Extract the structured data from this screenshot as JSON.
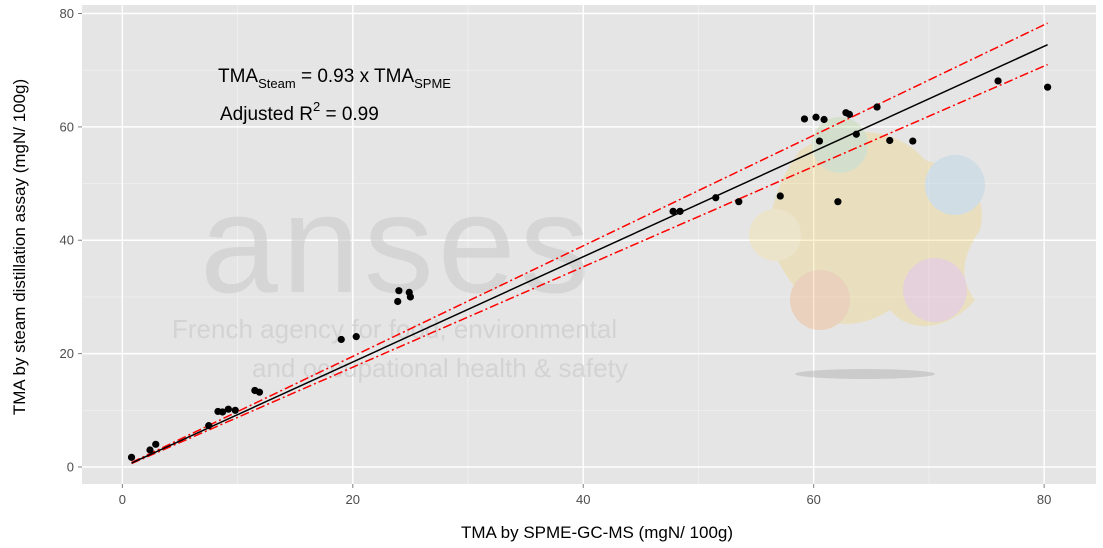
{
  "chart_data": {
    "type": "scatter",
    "xlabel": "TMA by SPME-GC-MS (mgN/ 100g)",
    "ylabel": "TMA by steam distillation assay (mgN/ 100g)",
    "xlim": [
      -3.5,
      84.5
    ],
    "ylim": [
      -3.0,
      81.5
    ],
    "xticks": [
      0,
      20,
      40,
      60,
      80
    ],
    "yticks": [
      0,
      20,
      40,
      60,
      80
    ],
    "grid": true,
    "annotation": {
      "line1_main": "TMA",
      "line1_sub1": "Steam",
      "line1_mid": " = 0.93 x TMA",
      "line1_sub2": "SPME",
      "line2_main": "Adjusted R",
      "line2_sup": "2",
      "line2_rest": " = 0.99"
    },
    "fit_line": {
      "x": [
        0.8,
        80.3
      ],
      "y": [
        0.7,
        74.5
      ]
    },
    "upper_band": {
      "x": [
        0.8,
        80.3
      ],
      "y": [
        0.8,
        78.3
      ]
    },
    "lower_band": {
      "x": [
        0.8,
        80.3
      ],
      "y": [
        0.6,
        71.0
      ]
    },
    "points": [
      {
        "x": 0.8,
        "y": 1.7
      },
      {
        "x": 2.4,
        "y": 3.0
      },
      {
        "x": 2.9,
        "y": 4.0
      },
      {
        "x": 7.5,
        "y": 7.3
      },
      {
        "x": 8.3,
        "y": 9.8
      },
      {
        "x": 8.7,
        "y": 9.7
      },
      {
        "x": 9.2,
        "y": 10.2
      },
      {
        "x": 9.8,
        "y": 10.0
      },
      {
        "x": 11.5,
        "y": 13.5
      },
      {
        "x": 11.9,
        "y": 13.2
      },
      {
        "x": 19.0,
        "y": 22.5
      },
      {
        "x": 20.3,
        "y": 23.0
      },
      {
        "x": 23.9,
        "y": 29.2
      },
      {
        "x": 24.0,
        "y": 31.1
      },
      {
        "x": 24.9,
        "y": 30.8
      },
      {
        "x": 25.0,
        "y": 30.0
      },
      {
        "x": 47.8,
        "y": 45.1
      },
      {
        "x": 48.4,
        "y": 45.1
      },
      {
        "x": 51.5,
        "y": 47.5
      },
      {
        "x": 53.5,
        "y": 46.8
      },
      {
        "x": 57.1,
        "y": 47.8
      },
      {
        "x": 59.2,
        "y": 61.4
      },
      {
        "x": 60.2,
        "y": 61.7
      },
      {
        "x": 60.5,
        "y": 57.5
      },
      {
        "x": 60.9,
        "y": 61.3
      },
      {
        "x": 62.1,
        "y": 46.8
      },
      {
        "x": 62.8,
        "y": 62.5
      },
      {
        "x": 63.1,
        "y": 62.2
      },
      {
        "x": 63.7,
        "y": 58.7
      },
      {
        "x": 65.5,
        "y": 63.5
      },
      {
        "x": 66.6,
        "y": 57.6
      },
      {
        "x": 68.6,
        "y": 57.5
      },
      {
        "x": 76.0,
        "y": 68.1
      },
      {
        "x": 80.3,
        "y": 67.0
      }
    ],
    "colors": {
      "panel": "#e5e5e5",
      "grid": "#ffffff",
      "fit": "#000000",
      "band": "#ff0000",
      "points": "#000000"
    }
  },
  "watermark": {
    "brand": "anses",
    "line1": "French agency for food, environmental",
    "line2": "and occupational health & safety"
  }
}
